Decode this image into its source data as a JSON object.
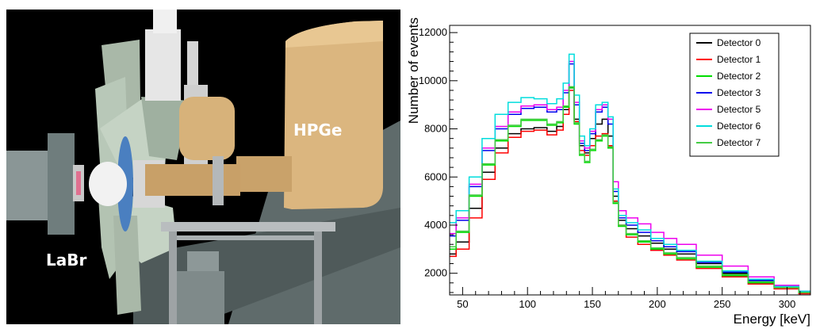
{
  "render": {
    "hpge_label": "HPGe",
    "labr_label": "LaBr",
    "colors": {
      "background": "#000000",
      "wall": "#5f6b6b",
      "detector_gold": "#dbb67f",
      "frame_green": "#b8c8b8",
      "steel": "#b9bdbf",
      "white_parts": "#e8e8e8"
    }
  },
  "chart_data": {
    "type": "line",
    "xlabel": "Energy [keV]",
    "ylabel": "Number of events",
    "xlim": [
      40,
      318
    ],
    "ylim": [
      1100,
      12300
    ],
    "xticks": [
      50,
      100,
      150,
      200,
      250,
      300
    ],
    "yticks": [
      2000,
      4000,
      6000,
      8000,
      10000,
      12000
    ],
    "grid": false,
    "legend_position": "top-right",
    "x": [
      40,
      50,
      60,
      70,
      80,
      90,
      100,
      110,
      120,
      125,
      130,
      134,
      138,
      142,
      146,
      150,
      155,
      160,
      164,
      168,
      172,
      180,
      190,
      200,
      210,
      220,
      240,
      260,
      280,
      300,
      318
    ],
    "series": [
      {
        "name": "Detector 0",
        "color": "#000000",
        "values": [
          2800,
          3300,
          4700,
          6200,
          7200,
          7800,
          8000,
          8050,
          7900,
          8100,
          8800,
          9700,
          8400,
          7300,
          7000,
          7600,
          8200,
          8400,
          7700,
          5200,
          4200,
          3850,
          3550,
          3250,
          3000,
          2800,
          2400,
          2000,
          1650,
          1400,
          1200
        ]
      },
      {
        "name": "Detector 1",
        "color": "#ff0000",
        "values": [
          2700,
          3000,
          4300,
          5900,
          7000,
          7650,
          7900,
          7950,
          7750,
          7950,
          8600,
          9600,
          8300,
          7100,
          6900,
          7300,
          7700,
          7800,
          7300,
          5000,
          4000,
          3500,
          3200,
          2950,
          2750,
          2550,
          2200,
          1850,
          1550,
          1350,
          1150
        ]
      },
      {
        "name": "Detector 2",
        "color": "#00dd00",
        "values": [
          3000,
          3700,
          5200,
          6500,
          7500,
          8100,
          8350,
          8350,
          8150,
          8250,
          8900,
          9700,
          8200,
          6900,
          6600,
          7100,
          7500,
          7700,
          7200,
          4900,
          3950,
          3600,
          3300,
          3000,
          2800,
          2600,
          2250,
          1900,
          1600,
          1400,
          1200
        ]
      },
      {
        "name": "Detector 3",
        "color": "#0000ee",
        "values": [
          3550,
          4200,
          5600,
          7100,
          8000,
          8600,
          8850,
          8900,
          8700,
          8800,
          9500,
          10700,
          9000,
          7400,
          7100,
          7800,
          8700,
          8900,
          8200,
          5400,
          4300,
          4000,
          3700,
          3350,
          3100,
          2900,
          2450,
          2050,
          1700,
          1450,
          1250
        ]
      },
      {
        "name": "Detector 5",
        "color": "#ee00ee",
        "values": [
          3650,
          4300,
          5700,
          7200,
          8100,
          8700,
          8950,
          9000,
          8800,
          8900,
          9600,
          10800,
          9100,
          7500,
          7200,
          7900,
          8800,
          9000,
          8400,
          5800,
          4600,
          4300,
          4050,
          3700,
          3450,
          3200,
          2750,
          2300,
          1850,
          1500,
          1250
        ]
      },
      {
        "name": "Detector 6",
        "color": "#00dddd",
        "values": [
          4100,
          4600,
          6000,
          7600,
          8600,
          9100,
          9300,
          9250,
          9050,
          9250,
          9900,
          11100,
          9400,
          7700,
          7300,
          8000,
          9000,
          9100,
          8500,
          5500,
          4400,
          4100,
          3800,
          3450,
          3200,
          2950,
          2500,
          2100,
          1750,
          1450,
          1250
        ]
      },
      {
        "name": "Detector 7",
        "color": "#44cc44",
        "values": [
          3100,
          3750,
          5250,
          6550,
          7550,
          8150,
          8400,
          8400,
          8200,
          8300,
          8950,
          9750,
          8250,
          6950,
          6650,
          7150,
          7550,
          7750,
          7250,
          4950,
          4000,
          3650,
          3350,
          3050,
          2850,
          2650,
          2300,
          1950,
          1650,
          1400,
          1200
        ]
      }
    ]
  }
}
